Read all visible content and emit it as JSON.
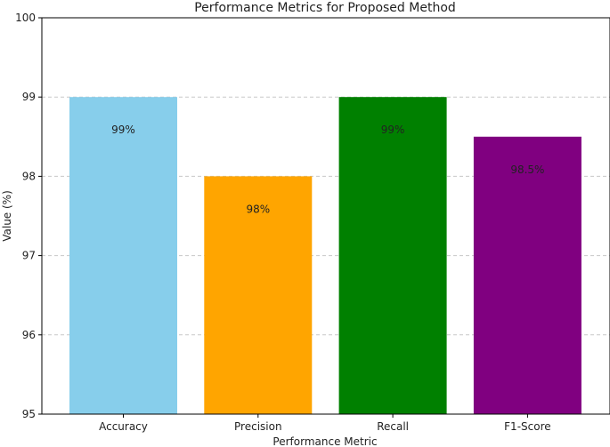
{
  "chart_data": {
    "type": "bar",
    "title": "Performance Metrics for Proposed Method",
    "xlabel": "Performance Metric",
    "ylabel": "Value (%)",
    "categories": [
      "Accuracy",
      "Precision",
      "Recall",
      "F1-Score"
    ],
    "values": [
      99,
      98,
      99,
      98.5
    ],
    "data_labels": [
      "99%",
      "98%",
      "99%",
      "98.5%"
    ],
    "colors": [
      "#87ceeb",
      "#ffa500",
      "#008000",
      "#800080"
    ],
    "ylim": [
      95,
      100
    ],
    "yticks": [
      "95",
      "96",
      "97",
      "98",
      "99",
      "100"
    ],
    "grid": "y-dashed"
  }
}
